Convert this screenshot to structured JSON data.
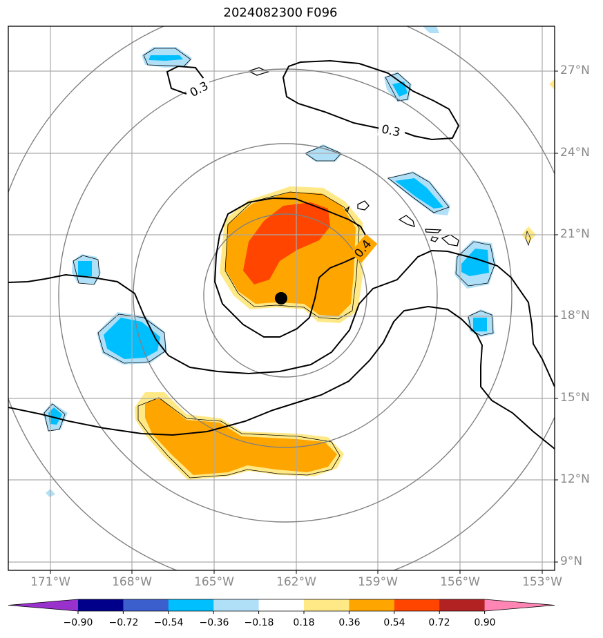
{
  "title": "2024082300 F096",
  "map": {
    "lat_labels": [
      "27°N",
      "24°N",
      "21°N",
      "18°N",
      "15°N",
      "12°N",
      "9°N"
    ],
    "lon_labels": [
      "171°W",
      "168°W",
      "165°W",
      "162°W",
      "159°W",
      "156°W",
      "153°W"
    ],
    "contour_labels": [
      "0.3",
      "0.3",
      "0.4"
    ],
    "storm_center": {
      "lat": 18.7,
      "lon": -162.6
    },
    "range_ring_count": 4,
    "colors": {
      "grid": "#aaaaaa",
      "range_ring": "#808080",
      "contour": "#000000",
      "storm_marker": "#000000"
    }
  },
  "colorbar": {
    "ticks": [
      "−0.90",
      "−0.72",
      "−0.54",
      "−0.36",
      "−0.18",
      "0.18",
      "0.36",
      "0.54",
      "0.72",
      "0.90"
    ],
    "colors": [
      "#9932cc",
      "#00008b",
      "#3b5fcd",
      "#00bfff",
      "#b0e0f8",
      "#ffffff",
      "#ffe987",
      "#ffa500",
      "#ff4500",
      "#b22222",
      "#ff85b5"
    ]
  }
}
